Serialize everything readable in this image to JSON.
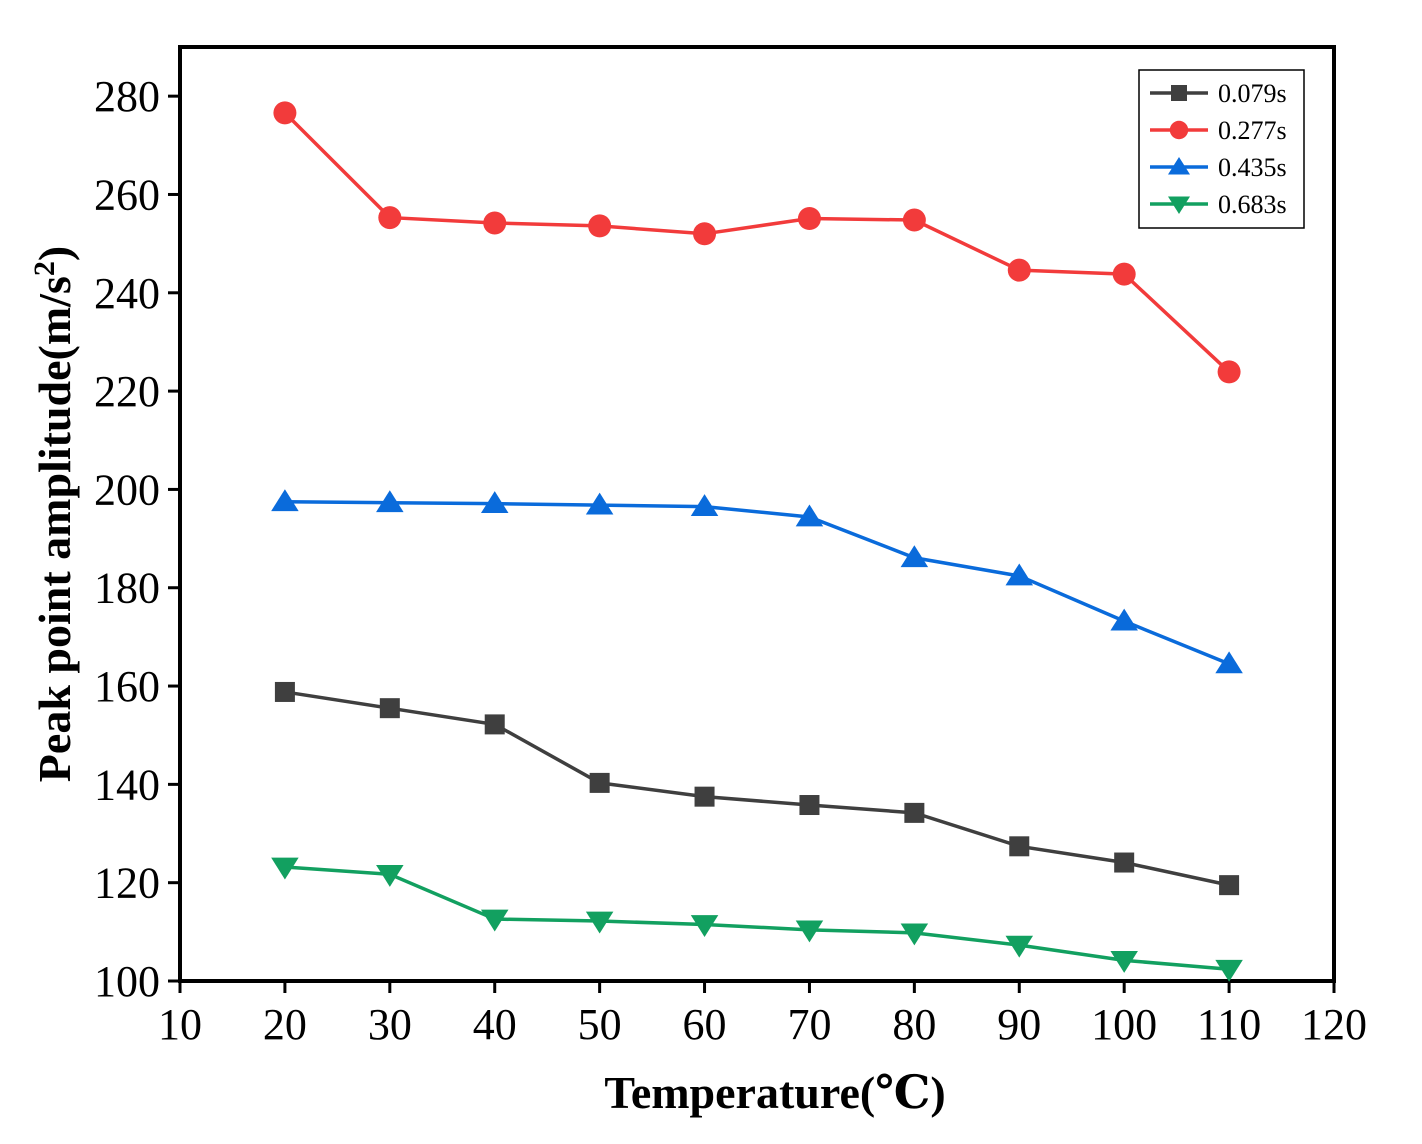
{
  "chart_data": {
    "type": "line",
    "title": "",
    "xlabel": "Temperature(℃)",
    "ylabel_main": "Peak point amplitude(m/s",
    "ylabel_sup": "2",
    "ylabel_close": ")",
    "xlim": [
      10,
      120
    ],
    "ylim": [
      100,
      290
    ],
    "xticks": [
      10,
      20,
      30,
      40,
      50,
      60,
      70,
      80,
      90,
      100,
      110,
      120
    ],
    "yticks": [
      100,
      120,
      140,
      160,
      180,
      200,
      220,
      240,
      260,
      280
    ],
    "grid": false,
    "legend_position": "top-right",
    "x": [
      20,
      30,
      40,
      50,
      60,
      70,
      80,
      90,
      100,
      110
    ],
    "series": [
      {
        "name": "0.079s",
        "color": "#3f3f3f",
        "marker": "square",
        "values": [
          158.8,
          155.5,
          152.2,
          140.3,
          137.5,
          135.8,
          134.2,
          127.4,
          124.1,
          119.5
        ]
      },
      {
        "name": "0.277s",
        "color": "#f23b3b",
        "marker": "circle",
        "values": [
          276.6,
          255.3,
          254.2,
          253.6,
          252.0,
          255.1,
          254.8,
          244.6,
          243.8,
          223.9
        ]
      },
      {
        "name": "0.435s",
        "color": "#0a6bdb",
        "marker": "triangle-up",
        "values": [
          197.5,
          197.3,
          197.1,
          196.8,
          196.5,
          194.4,
          186.1,
          182.4,
          173.2,
          164.5
        ]
      },
      {
        "name": "0.683s",
        "color": "#12a060",
        "marker": "triangle-down",
        "values": [
          123.2,
          121.7,
          112.6,
          112.2,
          111.5,
          110.4,
          109.8,
          107.3,
          104.2,
          102.4
        ]
      }
    ]
  }
}
